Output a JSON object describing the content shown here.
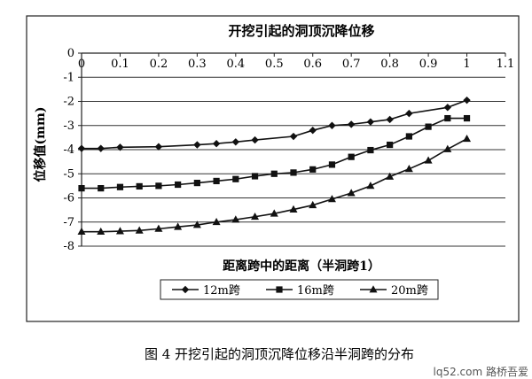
{
  "chart_data": {
    "type": "line",
    "title": "开挖引起的洞顶沉降位移",
    "xlabel": "距离跨中的距离（半洞跨1）",
    "ylabel": "位移值(mm)",
    "xlim": [
      0,
      1.1
    ],
    "ylim": [
      -8,
      0
    ],
    "x_ticks": [
      0,
      0.1,
      0.2,
      0.3,
      0.4,
      0.5,
      0.6,
      0.7,
      0.8,
      0.9,
      1,
      1.1
    ],
    "x_tick_labels": [
      "0",
      "0.1",
      "0.2",
      "0.3",
      "0.4",
      "0.5",
      "0.6",
      "0.7",
      "0.8",
      "0.9",
      "1",
      "1.1"
    ],
    "y_ticks": [
      0,
      -1,
      -2,
      -3,
      -4,
      -5,
      -6,
      -7,
      -8
    ],
    "y_tick_labels": [
      "0",
      "-1",
      "-2",
      "-3",
      "-4",
      "-5",
      "-6",
      "-7",
      "-8"
    ],
    "grid": "horizontal",
    "legend_position": "bottom-center",
    "series": [
      {
        "name": "12m跨",
        "marker": "diamond",
        "x": [
          0,
          0.05,
          0.1,
          0.2,
          0.3,
          0.35,
          0.4,
          0.45,
          0.55,
          0.6,
          0.65,
          0.7,
          0.75,
          0.8,
          0.85,
          0.95,
          1
        ],
        "y": [
          -3.95,
          -3.95,
          -3.9,
          -3.88,
          -3.8,
          -3.75,
          -3.68,
          -3.6,
          -3.45,
          -3.2,
          -3.0,
          -2.95,
          -2.85,
          -2.75,
          -2.5,
          -2.25,
          -1.95
        ]
      },
      {
        "name": "16m跨",
        "marker": "square",
        "x": [
          0,
          0.05,
          0.1,
          0.15,
          0.2,
          0.25,
          0.3,
          0.35,
          0.4,
          0.45,
          0.5,
          0.55,
          0.6,
          0.65,
          0.7,
          0.75,
          0.8,
          0.85,
          0.9,
          0.95,
          1
        ],
        "y": [
          -5.6,
          -5.6,
          -5.55,
          -5.52,
          -5.5,
          -5.45,
          -5.38,
          -5.3,
          -5.22,
          -5.1,
          -5.0,
          -4.95,
          -4.82,
          -4.62,
          -4.3,
          -4.02,
          -3.8,
          -3.45,
          -3.05,
          -2.7,
          -2.7
        ]
      },
      {
        "name": "20m跨",
        "marker": "triangle",
        "x": [
          0,
          0.05,
          0.1,
          0.15,
          0.2,
          0.25,
          0.3,
          0.35,
          0.4,
          0.45,
          0.5,
          0.55,
          0.6,
          0.65,
          0.7,
          0.75,
          0.8,
          0.85,
          0.9,
          0.95,
          1
        ],
        "y": [
          -7.4,
          -7.4,
          -7.38,
          -7.35,
          -7.28,
          -7.2,
          -7.12,
          -7.0,
          -6.9,
          -6.78,
          -6.65,
          -6.48,
          -6.3,
          -6.05,
          -5.8,
          -5.5,
          -5.12,
          -4.8,
          -4.45,
          -3.98,
          -3.55
        ]
      }
    ]
  },
  "caption": "图 4    开挖引起的洞顶沉降位移沿半洞跨的分布",
  "watermark": "lq52.com 路桥吾爱"
}
